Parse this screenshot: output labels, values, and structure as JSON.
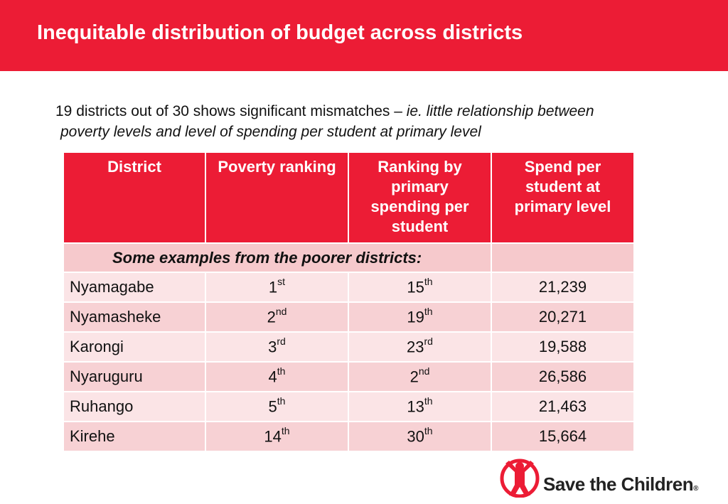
{
  "title": "Inequitable distribution of budget across districts",
  "subtitle": {
    "normal": "19 districts out of 30 shows significant mismatches – ",
    "italic_first": "ie. little relationship between",
    "italic_second": "poverty levels and level of spending per student at primary level"
  },
  "table": {
    "headers": [
      "District",
      "Poverty ranking",
      "Ranking by primary spending per student",
      "Spend per student at primary level"
    ],
    "subheader": "Some examples from the poorer districts:",
    "rows": [
      {
        "district": "Nyamagabe",
        "poverty": "1",
        "poverty_sfx": "st",
        "rank": "15",
        "rank_sfx": "th",
        "spend": "21,239"
      },
      {
        "district": "Nyamasheke",
        "poverty": "2",
        "poverty_sfx": "nd",
        "rank": "19",
        "rank_sfx": "th",
        "spend": "20,271"
      },
      {
        "district": "Karongi",
        "poverty": "3",
        "poverty_sfx": "rd",
        "rank": "23",
        "rank_sfx": "rd",
        "spend": "19,588"
      },
      {
        "district": "Nyaruguru",
        "poverty": "4",
        "poverty_sfx": "th",
        "rank": "2",
        "rank_sfx": "nd",
        "spend": "26,586"
      },
      {
        "district": "Ruhango",
        "poverty": "5",
        "poverty_sfx": "th",
        "rank": "13",
        "rank_sfx": "th",
        "spend": "21,463"
      },
      {
        "district": "Kirehe",
        "poverty": "14",
        "poverty_sfx": "th",
        "rank": "30",
        "rank_sfx": "th",
        "spend": "15,664"
      }
    ]
  },
  "logo": {
    "text": "Save the Children",
    "reg": "®"
  },
  "colors": {
    "brand_red": "#ec1c35",
    "row_light": "#fbe4e6",
    "row_dark": "#f7d1d4"
  }
}
